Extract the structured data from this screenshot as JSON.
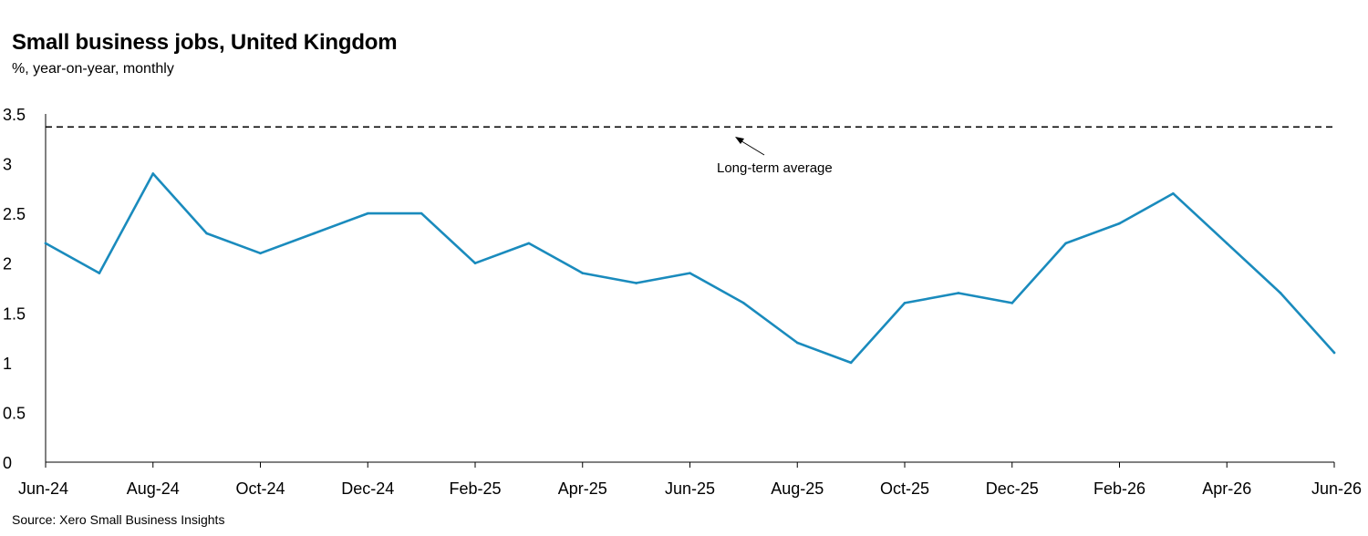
{
  "chart_data": {
    "type": "line",
    "title": "Small business jobs, United Kingdom",
    "subtitle": "%, year-on-year, monthly",
    "source": "Source: Xero Small Business Insights",
    "xlabel": "",
    "ylabel": "",
    "ylim": [
      0,
      3.5
    ],
    "yticks": [
      "0",
      "0.5",
      "1",
      "1.5",
      "2",
      "2.5",
      "3",
      "3.5"
    ],
    "grid": false,
    "x": [
      "Jun-24",
      "Jul-24",
      "Aug-24",
      "Sep-24",
      "Oct-24",
      "Nov-24",
      "Dec-24",
      "Jan-25",
      "Feb-25",
      "Mar-25",
      "Apr-25",
      "May-25",
      "Jun-25",
      "Jul-25",
      "Aug-25",
      "Sep-25",
      "Oct-25",
      "Nov-25",
      "Dec-25",
      "Jan-26",
      "Feb-26",
      "Mar-26",
      "Apr-26",
      "May-26",
      "Jun-26"
    ],
    "xtick_labels": [
      "Jun-24",
      "Aug-24",
      "Oct-24",
      "Dec-24",
      "Feb-25",
      "Apr-25",
      "Jun-25",
      "Aug-25",
      "Oct-25",
      "Dec-25",
      "Feb-26",
      "Apr-26",
      "Jun-26"
    ],
    "series": [
      {
        "values": [
          2.2,
          1.9,
          2.9,
          2.3,
          2.1,
          2.3,
          2.5,
          2.5,
          2.0,
          2.2,
          1.9,
          1.8,
          1.9,
          1.6,
          1.2,
          1.0,
          1.6,
          1.7,
          1.6,
          2.2,
          2.4,
          2.7,
          2.2,
          1.7,
          1.1
        ],
        "color": "#1a8bbd"
      }
    ],
    "reference_line": {
      "value": 3.37,
      "style": "dashed",
      "color": "#000000",
      "label": "Long-term average"
    }
  }
}
